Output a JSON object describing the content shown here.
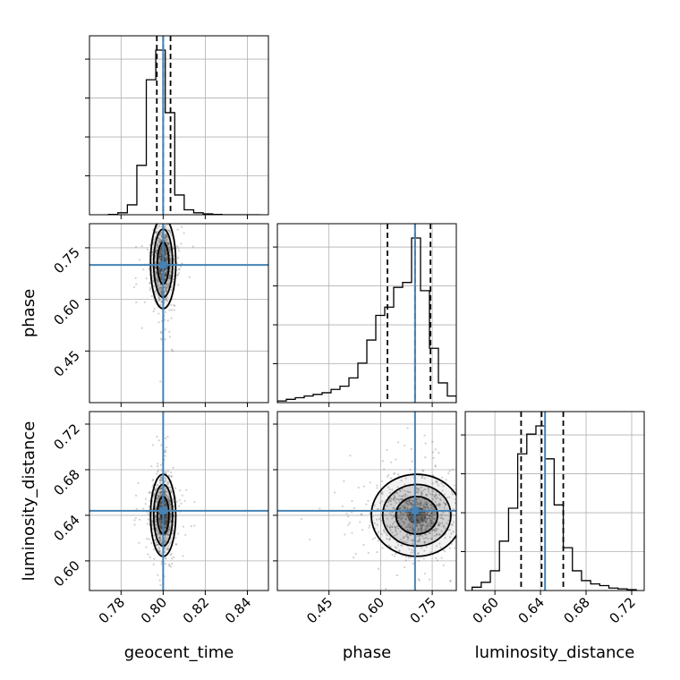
{
  "colors": {
    "truth": "#4682b4",
    "hist": "#000000",
    "grid": "#b0b0b0",
    "samples": "#555555",
    "quantile": "#000000"
  },
  "chart_data": {
    "type": "corner",
    "parameters": [
      "geocent_time",
      "phase",
      "luminosity_distance"
    ],
    "truths": {
      "geocent_time": 0.8,
      "phase": 0.7,
      "luminosity_distance": 0.644
    },
    "ranges": {
      "geocent_time": [
        0.765,
        0.85
      ],
      "phase": [
        0.3,
        0.82
      ],
      "luminosity_distance": [
        0.574,
        0.731
      ]
    },
    "ticks": {
      "geocent_time": [
        "0.78",
        "0.80",
        "0.82",
        "0.84"
      ],
      "phase": [
        "0.45",
        "0.60",
        "0.75"
      ],
      "luminosity_distance": [
        "0.60",
        "0.64",
        "0.68",
        "0.72"
      ]
    },
    "grid": true,
    "histograms": {
      "geocent_time": {
        "edges": [
          0.774,
          0.7785,
          0.783,
          0.7875,
          0.792,
          0.7965,
          0.801,
          0.8055,
          0.81,
          0.8145,
          0.819,
          0.8235,
          0.828,
          0.8325,
          0.837,
          0.8415,
          0.846
        ],
        "counts": [
          0.002,
          0.012,
          0.06,
          0.3,
          0.82,
          1.0,
          0.62,
          0.12,
          0.03,
          0.012,
          0.005,
          0.002,
          0.0,
          0.0,
          0.0,
          0.0
        ],
        "quantiles": [
          0.797,
          0.8,
          0.8035
        ]
      },
      "phase": {
        "edges": [
          0.3,
          0.326,
          0.352,
          0.378,
          0.404,
          0.43,
          0.456,
          0.482,
          0.508,
          0.534,
          0.56,
          0.586,
          0.612,
          0.638,
          0.664,
          0.69,
          0.716,
          0.742,
          0.768,
          0.794,
          0.82
        ],
        "counts": [
          0.01,
          0.02,
          0.03,
          0.04,
          0.05,
          0.06,
          0.08,
          0.1,
          0.15,
          0.24,
          0.38,
          0.53,
          0.58,
          0.7,
          0.73,
          1.0,
          0.68,
          0.33,
          0.12,
          0.04
        ],
        "quantiles": [
          0.62,
          0.7,
          0.745
        ]
      },
      "luminosity_distance": {
        "edges": [
          0.58,
          0.588,
          0.596,
          0.604,
          0.612,
          0.62,
          0.628,
          0.636,
          0.644,
          0.652,
          0.66,
          0.668,
          0.676,
          0.684,
          0.692,
          0.7,
          0.708,
          0.716,
          0.724
        ],
        "counts": [
          0.02,
          0.05,
          0.12,
          0.3,
          0.5,
          0.83,
          0.95,
          1.0,
          0.8,
          0.52,
          0.26,
          0.12,
          0.06,
          0.04,
          0.03,
          0.015,
          0.01,
          0.005
        ],
        "quantiles": [
          0.623,
          0.641,
          0.66
        ]
      }
    },
    "pairs": [
      {
        "x": "geocent_time",
        "y": "phase",
        "center": [
          0.8,
          0.705
        ],
        "spread": [
          0.0025,
          0.055
        ]
      },
      {
        "x": "geocent_time",
        "y": "luminosity_distance",
        "center": [
          0.8,
          0.64
        ],
        "spread": [
          0.0025,
          0.015
        ]
      },
      {
        "x": "phase",
        "y": "luminosity_distance",
        "center": [
          0.705,
          0.64
        ],
        "spread": [
          0.055,
          0.015
        ]
      }
    ]
  }
}
